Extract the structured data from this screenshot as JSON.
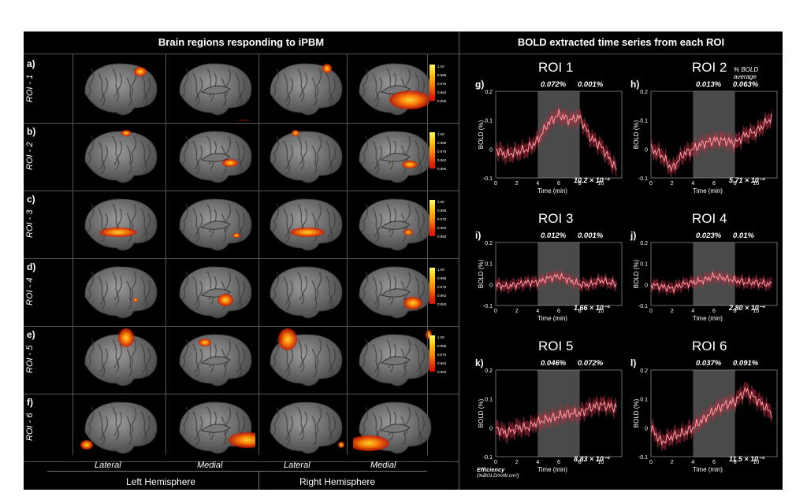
{
  "left": {
    "header": "Brain regions responding to iPBM",
    "rows": [
      {
        "letter": "a)",
        "label": "ROI - 1"
      },
      {
        "letter": "b)",
        "label": "ROI - 2"
      },
      {
        "letter": "c)",
        "label": "ROI - 3"
      },
      {
        "letter": "d)",
        "label": "ROI - 4"
      },
      {
        "letter": "e)",
        "label": "ROI - 5"
      },
      {
        "letter": "f)",
        "label": "ROI - 6"
      }
    ],
    "views": [
      "Lateral",
      "Medial",
      "Lateral",
      "Medial"
    ],
    "hemispheres": [
      "Left Hemisphere",
      "Right Hemisphere"
    ],
    "colorbar": [
      "1.00",
      "0.988",
      "0.975",
      "0.962",
      "0.950"
    ]
  },
  "right": {
    "header": "BOLD extracted time series from each ROI",
    "legend_note": "% BOLD average",
    "efficiency_label": "Efficiency",
    "efficiency_unit": "(%BOLD/mW.cm²)",
    "ylabel": "BOLD (%)",
    "xlabel": "Time (min)",
    "plots": [
      {
        "roi": "ROI 1",
        "letter": "g)",
        "pre": "0.072%",
        "post": "0.001%",
        "eff": "10.2 × 10⁻³"
      },
      {
        "roi": "ROI 2",
        "letter": "h)",
        "pre": "0.013%",
        "post": "0.063%",
        "eff": "5.71 × 10⁻³"
      },
      {
        "roi": "ROI 3",
        "letter": "i)",
        "pre": "0.012%",
        "post": "0.001%",
        "eff": "1.66 × 10⁻³"
      },
      {
        "roi": "ROI 4",
        "letter": "j)",
        "pre": "0.023%",
        "post": "0.01%",
        "eff": "2.80 × 10⁻³"
      },
      {
        "roi": "ROI 5",
        "letter": "k)",
        "pre": "0.046%",
        "post": "0.072%",
        "eff": "8.83 × 10⁻³"
      },
      {
        "roi": "ROI 6",
        "letter": "l)",
        "pre": "0.037%",
        "post": "0.091%",
        "eff": "11.5 × 10⁻³"
      }
    ]
  },
  "chart_data": [
    {
      "type": "line",
      "title": "ROI 1",
      "xlabel": "Time (min)",
      "ylabel": "BOLD (%)",
      "xlim": [
        0,
        12
      ],
      "ylim": [
        -0.1,
        0.2
      ],
      "x": [
        0,
        1,
        2,
        3,
        4,
        5,
        6,
        7,
        8,
        9,
        10,
        11.5
      ],
      "values": [
        0.0,
        -0.02,
        -0.01,
        0.0,
        0.03,
        0.09,
        0.12,
        0.1,
        0.11,
        0.04,
        0.01,
        -0.07
      ]
    },
    {
      "type": "line",
      "title": "ROI 2",
      "xlabel": "Time (min)",
      "ylabel": "BOLD (%)",
      "xlim": [
        0,
        12
      ],
      "ylim": [
        -0.1,
        0.2
      ],
      "x": [
        0,
        1,
        2,
        3,
        4,
        5,
        6,
        7,
        8,
        9,
        10,
        11.5
      ],
      "values": [
        0.0,
        -0.02,
        -0.07,
        -0.02,
        0.0,
        0.02,
        0.03,
        0.03,
        0.02,
        0.05,
        0.06,
        0.11
      ]
    },
    {
      "type": "line",
      "title": "ROI 3",
      "xlabel": "Time (min)",
      "ylabel": "BOLD (%)",
      "xlim": [
        0,
        12
      ],
      "ylim": [
        -0.1,
        0.2
      ],
      "x": [
        0,
        1,
        2,
        3,
        4,
        5,
        6,
        7,
        8,
        9,
        10,
        11.5
      ],
      "values": [
        0.0,
        -0.01,
        0.0,
        0.01,
        0.01,
        0.03,
        0.04,
        0.02,
        0.0,
        0.0,
        0.02,
        0.0
      ]
    },
    {
      "type": "line",
      "title": "ROI 4",
      "xlabel": "Time (min)",
      "ylabel": "BOLD (%)",
      "xlim": [
        0,
        12
      ],
      "ylim": [
        -0.1,
        0.2
      ],
      "x": [
        0,
        1,
        2,
        3,
        4,
        5,
        6,
        7,
        8,
        9,
        10,
        11.5
      ],
      "values": [
        0.0,
        -0.01,
        -0.02,
        0.0,
        0.01,
        0.02,
        0.04,
        0.03,
        0.02,
        0.01,
        0.01,
        0.0
      ]
    },
    {
      "type": "line",
      "title": "ROI 5",
      "xlabel": "Time (min)",
      "ylabel": "BOLD (%)",
      "xlim": [
        0,
        12
      ],
      "ylim": [
        -0.1,
        0.2
      ],
      "x": [
        0,
        1,
        2,
        3,
        4,
        5,
        6,
        7,
        8,
        9,
        10,
        11.5
      ],
      "values": [
        0.0,
        -0.02,
        0.0,
        0.0,
        0.02,
        0.03,
        0.04,
        0.05,
        0.05,
        0.07,
        0.08,
        0.07
      ]
    },
    {
      "type": "line",
      "title": "ROI 6",
      "xlabel": "Time (min)",
      "ylabel": "BOLD (%)",
      "xlim": [
        0,
        12
      ],
      "ylim": [
        -0.1,
        0.2
      ],
      "x": [
        0,
        1,
        2,
        3,
        4,
        5,
        6,
        7,
        8,
        9,
        10,
        11.5
      ],
      "values": [
        0.0,
        -0.05,
        -0.03,
        -0.02,
        0.0,
        0.03,
        0.06,
        0.08,
        0.09,
        0.13,
        0.1,
        0.05
      ]
    }
  ]
}
